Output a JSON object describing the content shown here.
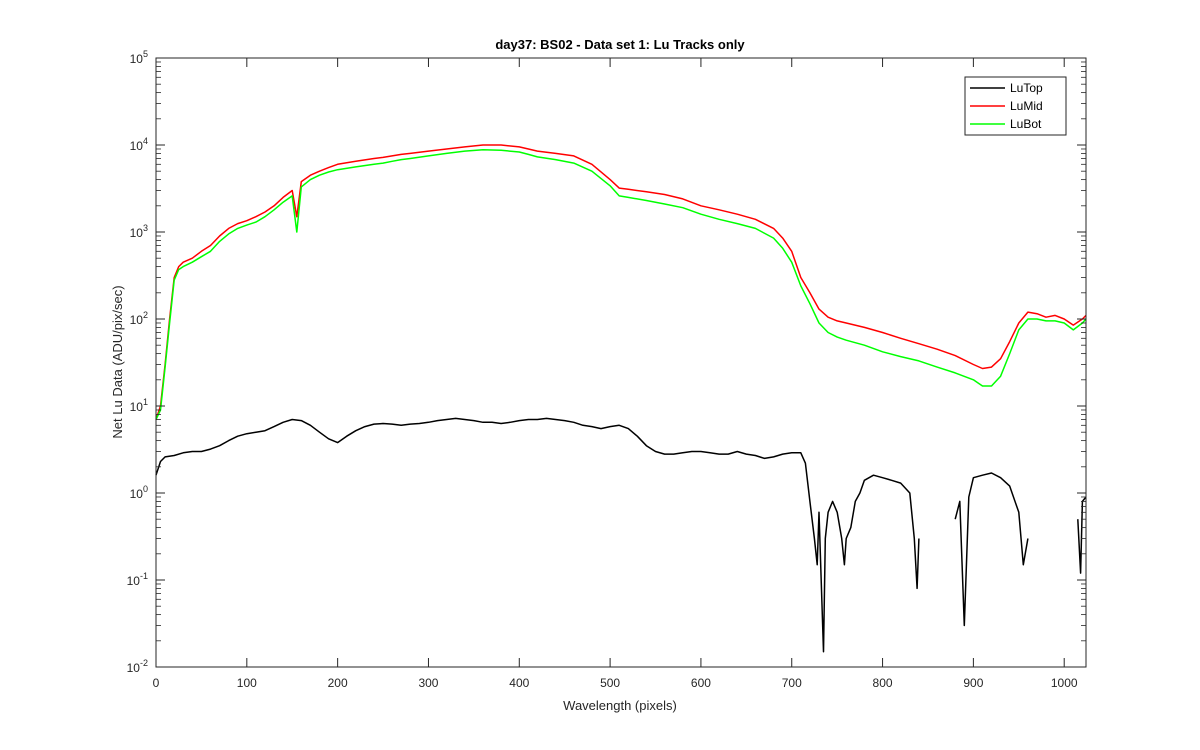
{
  "chart_data": {
    "type": "line",
    "title": "day37: BS02 - Data set 1: Lu Tracks only",
    "xlabel": "Wavelength (pixels)",
    "ylabel": "Net Lu Data (ADU/pix/sec)",
    "xlim": [
      0,
      1024
    ],
    "ylim": [
      0.01,
      100000
    ],
    "yscale": "log",
    "grid": false,
    "legend_position": "top-right",
    "x_ticks": [
      0,
      100,
      200,
      300,
      400,
      500,
      600,
      700,
      800,
      900,
      1000
    ],
    "x_tick_labels": [
      "0",
      "100",
      "200",
      "300",
      "400",
      "500",
      "600",
      "700",
      "800",
      "900",
      "1000"
    ],
    "y_ticks": [
      0.01,
      0.1,
      1,
      10,
      100,
      1000,
      10000,
      100000
    ],
    "y_tick_labels": [
      {
        "base": "10",
        "exp": "-2"
      },
      {
        "base": "10",
        "exp": "-1"
      },
      {
        "base": "10",
        "exp": "0"
      },
      {
        "base": "10",
        "exp": "1"
      },
      {
        "base": "10",
        "exp": "2"
      },
      {
        "base": "10",
        "exp": "3"
      },
      {
        "base": "10",
        "exp": "4"
      },
      {
        "base": "10",
        "exp": "5"
      }
    ],
    "series": [
      {
        "name": "LuTop",
        "color": "#000000",
        "x": [
          0,
          5,
          10,
          20,
          30,
          40,
          50,
          60,
          70,
          80,
          90,
          100,
          110,
          120,
          130,
          140,
          150,
          160,
          170,
          180,
          190,
          200,
          210,
          220,
          230,
          240,
          250,
          260,
          270,
          280,
          290,
          300,
          310,
          320,
          330,
          340,
          350,
          360,
          370,
          380,
          390,
          400,
          410,
          420,
          430,
          440,
          450,
          460,
          470,
          480,
          490,
          500,
          510,
          520,
          530,
          540,
          550,
          560,
          570,
          580,
          590,
          600,
          610,
          620,
          630,
          640,
          650,
          660,
          670,
          680,
          690,
          700,
          710,
          715,
          720,
          725,
          728,
          730,
          735,
          737,
          740,
          745,
          750,
          755,
          758,
          760,
          765,
          770,
          775,
          780,
          790,
          800,
          810,
          820,
          830,
          835,
          838,
          840,
          null,
          880,
          885,
          890,
          895,
          900,
          910,
          920,
          930,
          940,
          950,
          955,
          960,
          null,
          1015,
          1018,
          1020,
          1024
        ],
        "y": [
          1.6,
          2.3,
          2.6,
          2.7,
          2.9,
          3.0,
          3.0,
          3.2,
          3.5,
          4.0,
          4.5,
          4.8,
          5.0,
          5.2,
          5.8,
          6.5,
          7.0,
          6.8,
          6.0,
          5.0,
          4.2,
          3.8,
          4.5,
          5.2,
          5.8,
          6.2,
          6.3,
          6.2,
          6.0,
          6.2,
          6.3,
          6.5,
          6.8,
          7.0,
          7.2,
          7.0,
          6.8,
          6.5,
          6.5,
          6.3,
          6.5,
          6.8,
          7.0,
          7.0,
          7.2,
          7.0,
          6.8,
          6.5,
          6.0,
          5.8,
          5.5,
          5.8,
          6.0,
          5.5,
          4.5,
          3.5,
          3.0,
          2.8,
          2.8,
          2.9,
          3.0,
          3.0,
          2.9,
          2.8,
          2.8,
          3.0,
          2.8,
          2.7,
          2.5,
          2.6,
          2.8,
          2.9,
          2.9,
          2.2,
          0.8,
          0.3,
          0.15,
          0.6,
          0.015,
          0.3,
          0.6,
          0.8,
          0.6,
          0.3,
          0.15,
          0.3,
          0.4,
          0.8,
          1.0,
          1.4,
          1.6,
          1.5,
          1.4,
          1.3,
          1.0,
          0.3,
          0.08,
          0.3,
          null,
          0.5,
          0.8,
          0.03,
          0.9,
          1.5,
          1.6,
          1.7,
          1.5,
          1.2,
          0.6,
          0.15,
          0.3,
          null,
          0.5,
          0.12,
          0.8,
          0.9
        ]
      },
      {
        "name": "LuMid",
        "color": "#ff0000",
        "x": [
          0,
          5,
          10,
          15,
          20,
          25,
          30,
          40,
          50,
          60,
          70,
          80,
          90,
          100,
          110,
          120,
          130,
          140,
          150,
          155,
          160,
          170,
          180,
          190,
          200,
          220,
          240,
          250,
          260,
          270,
          280,
          300,
          320,
          340,
          360,
          380,
          400,
          410,
          420,
          440,
          460,
          480,
          500,
          510,
          520,
          540,
          560,
          580,
          600,
          620,
          640,
          660,
          680,
          690,
          700,
          710,
          720,
          730,
          740,
          750,
          760,
          780,
          800,
          820,
          840,
          860,
          880,
          900,
          910,
          920,
          930,
          940,
          950,
          960,
          970,
          980,
          990,
          1000,
          1010,
          1020,
          1024
        ],
        "y": [
          7,
          10,
          30,
          100,
          300,
          400,
          450,
          500,
          600,
          700,
          900,
          1100,
          1250,
          1350,
          1500,
          1700,
          2000,
          2500,
          3000,
          1500,
          3800,
          4500,
          5000,
          5500,
          6000,
          6500,
          7000,
          7200,
          7500,
          7800,
          8000,
          8500,
          9000,
          9500,
          10000,
          10000,
          9500,
          9000,
          8500,
          8000,
          7500,
          6000,
          4000,
          3200,
          3100,
          2900,
          2700,
          2400,
          2000,
          1800,
          1600,
          1400,
          1100,
          850,
          600,
          300,
          200,
          130,
          105,
          95,
          90,
          80,
          70,
          60,
          52,
          45,
          38,
          30,
          27,
          28,
          35,
          55,
          90,
          120,
          115,
          105,
          110,
          100,
          85,
          100,
          110
        ]
      },
      {
        "name": "LuBot",
        "color": "#00ff00",
        "x": [
          0,
          5,
          10,
          15,
          20,
          25,
          30,
          40,
          50,
          60,
          70,
          80,
          90,
          100,
          110,
          120,
          130,
          140,
          150,
          155,
          160,
          170,
          180,
          190,
          200,
          220,
          240,
          250,
          260,
          270,
          280,
          300,
          320,
          340,
          360,
          380,
          400,
          410,
          420,
          440,
          460,
          480,
          500,
          510,
          520,
          540,
          560,
          580,
          600,
          620,
          640,
          660,
          680,
          690,
          700,
          710,
          720,
          730,
          740,
          750,
          760,
          780,
          800,
          820,
          840,
          860,
          880,
          900,
          910,
          920,
          930,
          940,
          950,
          960,
          970,
          980,
          990,
          1000,
          1010,
          1020,
          1024
        ],
        "y": [
          7,
          9,
          28,
          90,
          280,
          370,
          400,
          450,
          520,
          600,
          780,
          950,
          1100,
          1200,
          1300,
          1500,
          1800,
          2200,
          2600,
          1000,
          3300,
          4000,
          4500,
          4900,
          5200,
          5600,
          6000,
          6200,
          6500,
          6800,
          7000,
          7500,
          8000,
          8500,
          8800,
          8700,
          8300,
          7800,
          7300,
          6800,
          6200,
          5000,
          3400,
          2600,
          2500,
          2300,
          2100,
          1900,
          1600,
          1400,
          1250,
          1100,
          850,
          650,
          450,
          240,
          150,
          90,
          70,
          62,
          57,
          50,
          42,
          37,
          33,
          28,
          24,
          20,
          17,
          17,
          22,
          40,
          75,
          100,
          100,
          95,
          95,
          90,
          75,
          90,
          100
        ]
      }
    ]
  }
}
